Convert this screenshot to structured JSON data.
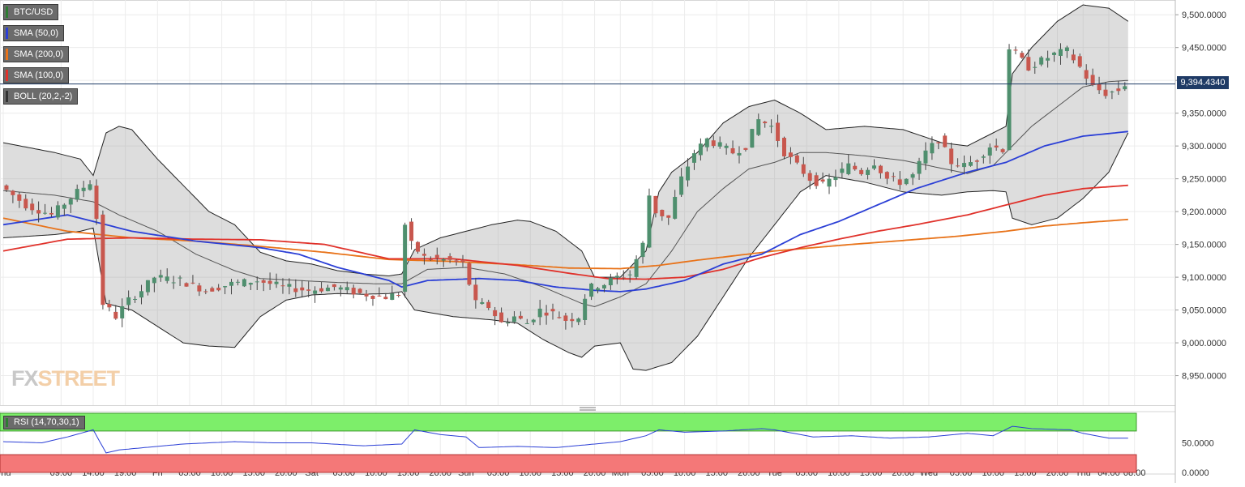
{
  "chart_data": [
    {
      "type": "candlestick",
      "instrument": "BTC/USD",
      "indicators": [
        {
          "label": "SMA (50,0)",
          "color": "#2b3fd6"
        },
        {
          "label": "SMA (200,0)",
          "color": "#e8731a"
        },
        {
          "label": "SMA (100,0)",
          "color": "#e0312a"
        },
        {
          "label": "BOLL (20,2,-2)",
          "color": "#333333"
        }
      ],
      "ylim": [
        8905,
        9520
      ],
      "y_ticks": [
        "9,500.0000",
        "9,450.0000",
        "9,400.0000",
        "9,350.0000",
        "9,300.0000",
        "9,250.0000",
        "9,200.0000",
        "9,150.0000",
        "9,100.0000",
        "9,050.0000",
        "9,000.0000",
        "8,950.0000"
      ],
      "y_tick_values": [
        9500,
        9450,
        9400,
        9350,
        9300,
        9250,
        9200,
        9150,
        9100,
        9050,
        9000,
        8950
      ],
      "current_price": 9394.434,
      "current_price_label": "9,394.4340",
      "x_ticks": [
        "Thu",
        "09:00",
        "14:00",
        "19:00",
        "Fri",
        "05:00",
        "10:00",
        "15:00",
        "20:00",
        "Sat",
        "05:00",
        "10:00",
        "15:00",
        "20:00",
        "Sun",
        "05:00",
        "10:00",
        "15:00",
        "20:00",
        "Mon",
        "05:00",
        "10:00",
        "15:00",
        "20:00",
        "Tue",
        "05:00",
        "10:00",
        "15:00",
        "20:00",
        "Wed",
        "05:00",
        "10:00",
        "15:00",
        "20:00",
        "Thu",
        "04:00",
        "08:00"
      ],
      "x_tick_hours": [
        0,
        9,
        14,
        19,
        24,
        29,
        34,
        39,
        44,
        48,
        53,
        58,
        63,
        68,
        72,
        77,
        82,
        87,
        92,
        96,
        101,
        106,
        111,
        116,
        120,
        125,
        130,
        135,
        140,
        144,
        149,
        154,
        159,
        164,
        168,
        172,
        176
      ],
      "hours_per_candle": 1,
      "hours_total": 176,
      "price_waypoints": [
        [
          0,
          9240
        ],
        [
          4,
          9210
        ],
        [
          8,
          9195
        ],
        [
          12,
          9230
        ],
        [
          14,
          9245
        ],
        [
          15,
          9190
        ],
        [
          16,
          9060
        ],
        [
          18,
          9040
        ],
        [
          20,
          9065
        ],
        [
          22,
          9080
        ],
        [
          24,
          9100
        ],
        [
          28,
          9095
        ],
        [
          32,
          9080
        ],
        [
          36,
          9090
        ],
        [
          40,
          9095
        ],
        [
          44,
          9085
        ],
        [
          48,
          9080
        ],
        [
          52,
          9085
        ],
        [
          56,
          9075
        ],
        [
          60,
          9070
        ],
        [
          62,
          9075
        ],
        [
          63,
          9180
        ],
        [
          64,
          9150
        ],
        [
          66,
          9130
        ],
        [
          68,
          9128
        ],
        [
          70,
          9125
        ],
        [
          72,
          9120
        ],
        [
          74,
          9060
        ],
        [
          76,
          9055
        ],
        [
          78,
          9030
        ],
        [
          80,
          9040
        ],
        [
          82,
          9030
        ],
        [
          84,
          9050
        ],
        [
          86,
          9045
        ],
        [
          88,
          9035
        ],
        [
          90,
          9040
        ],
        [
          91,
          9070
        ],
        [
          92,
          9085
        ],
        [
          94,
          9090
        ],
        [
          96,
          9100
        ],
        [
          98,
          9105
        ],
        [
          100,
          9150
        ],
        [
          101,
          9225
        ],
        [
          102,
          9200
        ],
        [
          104,
          9190
        ],
        [
          106,
          9250
        ],
        [
          108,
          9290
        ],
        [
          110,
          9310
        ],
        [
          112,
          9300
        ],
        [
          114,
          9290
        ],
        [
          116,
          9300
        ],
        [
          118,
          9340
        ],
        [
          120,
          9330
        ],
        [
          122,
          9290
        ],
        [
          124,
          9270
        ],
        [
          126,
          9250
        ],
        [
          128,
          9240
        ],
        [
          130,
          9255
        ],
        [
          132,
          9270
        ],
        [
          134,
          9260
        ],
        [
          136,
          9275
        ],
        [
          138,
          9250
        ],
        [
          140,
          9245
        ],
        [
          142,
          9255
        ],
        [
          144,
          9290
        ],
        [
          146,
          9310
        ],
        [
          148,
          9275
        ],
        [
          150,
          9270
        ],
        [
          152,
          9280
        ],
        [
          154,
          9300
        ],
        [
          156,
          9295
        ],
        [
          157,
          9450
        ],
        [
          158,
          9440
        ],
        [
          159,
          9430
        ],
        [
          160,
          9420
        ],
        [
          162,
          9430
        ],
        [
          164,
          9440
        ],
        [
          166,
          9445
        ],
        [
          168,
          9420
        ],
        [
          170,
          9390
        ],
        [
          172,
          9380
        ],
        [
          174,
          9385
        ],
        [
          175,
          9394
        ]
      ],
      "sma50_waypoints": [
        [
          0,
          9180
        ],
        [
          10,
          9195
        ],
        [
          20,
          9170
        ],
        [
          30,
          9155
        ],
        [
          40,
          9145
        ],
        [
          46,
          9135
        ],
        [
          52,
          9115
        ],
        [
          60,
          9095
        ],
        [
          62,
          9085
        ],
        [
          66,
          9095
        ],
        [
          74,
          9098
        ],
        [
          80,
          9095
        ],
        [
          86,
          9085
        ],
        [
          92,
          9080
        ],
        [
          96,
          9078
        ],
        [
          100,
          9082
        ],
        [
          106,
          9095
        ],
        [
          112,
          9120
        ],
        [
          118,
          9135
        ],
        [
          124,
          9165
        ],
        [
          130,
          9185
        ],
        [
          136,
          9210
        ],
        [
          142,
          9235
        ],
        [
          150,
          9260
        ],
        [
          156,
          9275
        ],
        [
          162,
          9300
        ],
        [
          168,
          9315
        ],
        [
          175,
          9322
        ]
      ],
      "sma100_waypoints": [
        [
          0,
          9140
        ],
        [
          10,
          9158
        ],
        [
          20,
          9160
        ],
        [
          30,
          9158
        ],
        [
          40,
          9157
        ],
        [
          50,
          9150
        ],
        [
          60,
          9128
        ],
        [
          70,
          9128
        ],
        [
          80,
          9118
        ],
        [
          88,
          9106
        ],
        [
          94,
          9098
        ],
        [
          100,
          9097
        ],
        [
          106,
          9100
        ],
        [
          112,
          9112
        ],
        [
          118,
          9130
        ],
        [
          124,
          9145
        ],
        [
          130,
          9158
        ],
        [
          136,
          9170
        ],
        [
          142,
          9180
        ],
        [
          150,
          9195
        ],
        [
          156,
          9210
        ],
        [
          162,
          9225
        ],
        [
          168,
          9235
        ],
        [
          175,
          9240
        ]
      ],
      "sma200_waypoints": [
        [
          0,
          9190
        ],
        [
          10,
          9170
        ],
        [
          20,
          9160
        ],
        [
          30,
          9155
        ],
        [
          40,
          9147
        ],
        [
          50,
          9138
        ],
        [
          60,
          9127
        ],
        [
          70,
          9124
        ],
        [
          80,
          9119
        ],
        [
          88,
          9114
        ],
        [
          96,
          9113
        ],
        [
          102,
          9118
        ],
        [
          108,
          9126
        ],
        [
          114,
          9133
        ],
        [
          120,
          9140
        ],
        [
          126,
          9145
        ],
        [
          132,
          9150
        ],
        [
          140,
          9156
        ],
        [
          148,
          9162
        ],
        [
          156,
          9170
        ],
        [
          162,
          9178
        ],
        [
          168,
          9183
        ],
        [
          175,
          9188
        ]
      ],
      "boll_upper_waypoints": [
        [
          0,
          9305
        ],
        [
          8,
          9290
        ],
        [
          12,
          9280
        ],
        [
          14,
          9255
        ],
        [
          16,
          9320
        ],
        [
          18,
          9330
        ],
        [
          20,
          9325
        ],
        [
          24,
          9280
        ],
        [
          28,
          9240
        ],
        [
          32,
          9200
        ],
        [
          36,
          9180
        ],
        [
          40,
          9138
        ],
        [
          44,
          9125
        ],
        [
          48,
          9120
        ],
        [
          52,
          9110
        ],
        [
          56,
          9105
        ],
        [
          60,
          9102
        ],
        [
          62,
          9105
        ],
        [
          64,
          9142
        ],
        [
          68,
          9160
        ],
        [
          72,
          9170
        ],
        [
          76,
          9180
        ],
        [
          80,
          9187
        ],
        [
          82,
          9185
        ],
        [
          86,
          9170
        ],
        [
          90,
          9140
        ],
        [
          92,
          9100
        ],
        [
          96,
          9100
        ],
        [
          100,
          9140
        ],
        [
          102,
          9230
        ],
        [
          104,
          9260
        ],
        [
          108,
          9290
        ],
        [
          112,
          9335
        ],
        [
          116,
          9360
        ],
        [
          120,
          9370
        ],
        [
          124,
          9350
        ],
        [
          128,
          9325
        ],
        [
          134,
          9330
        ],
        [
          140,
          9325
        ],
        [
          146,
          9305
        ],
        [
          150,
          9300
        ],
        [
          154,
          9320
        ],
        [
          156,
          9330
        ],
        [
          157,
          9410
        ],
        [
          160,
          9450
        ],
        [
          164,
          9490
        ],
        [
          168,
          9515
        ],
        [
          172,
          9510
        ],
        [
          175,
          9490
        ]
      ],
      "boll_middle_waypoints": [
        [
          0,
          9232
        ],
        [
          8,
          9225
        ],
        [
          14,
          9215
        ],
        [
          18,
          9195
        ],
        [
          24,
          9170
        ],
        [
          30,
          9135
        ],
        [
          36,
          9110
        ],
        [
          40,
          9098
        ],
        [
          46,
          9095
        ],
        [
          52,
          9092
        ],
        [
          58,
          9090
        ],
        [
          62,
          9090
        ],
        [
          66,
          9112
        ],
        [
          72,
          9115
        ],
        [
          78,
          9105
        ],
        [
          84,
          9085
        ],
        [
          90,
          9060
        ],
        [
          92,
          9055
        ],
        [
          96,
          9070
        ],
        [
          100,
          9090
        ],
        [
          104,
          9140
        ],
        [
          108,
          9200
        ],
        [
          112,
          9235
        ],
        [
          116,
          9265
        ],
        [
          120,
          9275
        ],
        [
          124,
          9290
        ],
        [
          128,
          9290
        ],
        [
          134,
          9285
        ],
        [
          140,
          9278
        ],
        [
          144,
          9270
        ],
        [
          150,
          9258
        ],
        [
          154,
          9270
        ],
        [
          157,
          9300
        ],
        [
          160,
          9330
        ],
        [
          164,
          9360
        ],
        [
          168,
          9390
        ],
        [
          172,
          9398
        ],
        [
          175,
          9400
        ]
      ],
      "boll_lower_waypoints": [
        [
          0,
          9160
        ],
        [
          8,
          9165
        ],
        [
          12,
          9170
        ],
        [
          14,
          9175
        ],
        [
          16,
          9060
        ],
        [
          20,
          9050
        ],
        [
          24,
          9025
        ],
        [
          28,
          9000
        ],
        [
          32,
          8995
        ],
        [
          36,
          8993
        ],
        [
          40,
          9040
        ],
        [
          44,
          9065
        ],
        [
          48,
          9073
        ],
        [
          52,
          9075
        ],
        [
          56,
          9074
        ],
        [
          60,
          9075
        ],
        [
          62,
          9078
        ],
        [
          64,
          9050
        ],
        [
          70,
          9040
        ],
        [
          76,
          9035
        ],
        [
          80,
          9030
        ],
        [
          84,
          9005
        ],
        [
          88,
          8985
        ],
        [
          90,
          8978
        ],
        [
          92,
          8995
        ],
        [
          96,
          9000
        ],
        [
          98,
          8960
        ],
        [
          100,
          8958
        ],
        [
          104,
          8970
        ],
        [
          108,
          9010
        ],
        [
          112,
          9070
        ],
        [
          116,
          9130
        ],
        [
          120,
          9180
        ],
        [
          124,
          9230
        ],
        [
          128,
          9255
        ],
        [
          134,
          9245
        ],
        [
          140,
          9230
        ],
        [
          146,
          9225
        ],
        [
          150,
          9230
        ],
        [
          154,
          9232
        ],
        [
          156,
          9230
        ],
        [
          157,
          9190
        ],
        [
          160,
          9180
        ],
        [
          164,
          9190
        ],
        [
          168,
          9220
        ],
        [
          172,
          9260
        ],
        [
          175,
          9320
        ]
      ]
    },
    {
      "type": "line",
      "indicator_label": "RSI (14,70,30,1)",
      "ylim": [
        0,
        100
      ],
      "y_ticks": [
        "50.0000",
        "0.0000"
      ],
      "y_tick_values": [
        50,
        0
      ],
      "overbought": 70,
      "oversold": 30,
      "rsi_waypoints": [
        [
          0,
          52
        ],
        [
          6,
          50
        ],
        [
          10,
          60
        ],
        [
          14,
          72
        ],
        [
          16,
          33
        ],
        [
          18,
          38
        ],
        [
          22,
          42
        ],
        [
          28,
          48
        ],
        [
          36,
          52
        ],
        [
          42,
          50
        ],
        [
          48,
          50
        ],
        [
          56,
          45
        ],
        [
          62,
          48
        ],
        [
          64,
          72
        ],
        [
          68,
          64
        ],
        [
          72,
          60
        ],
        [
          74,
          42
        ],
        [
          80,
          44
        ],
        [
          86,
          42
        ],
        [
          92,
          48
        ],
        [
          96,
          52
        ],
        [
          100,
          62
        ],
        [
          102,
          72
        ],
        [
          106,
          68
        ],
        [
          112,
          70
        ],
        [
          118,
          74
        ],
        [
          120,
          72
        ],
        [
          126,
          60
        ],
        [
          132,
          62
        ],
        [
          138,
          58
        ],
        [
          144,
          60
        ],
        [
          150,
          66
        ],
        [
          154,
          62
        ],
        [
          157,
          78
        ],
        [
          160,
          74
        ],
        [
          166,
          72
        ],
        [
          168,
          66
        ],
        [
          172,
          58
        ],
        [
          175,
          58
        ]
      ]
    }
  ]
}
